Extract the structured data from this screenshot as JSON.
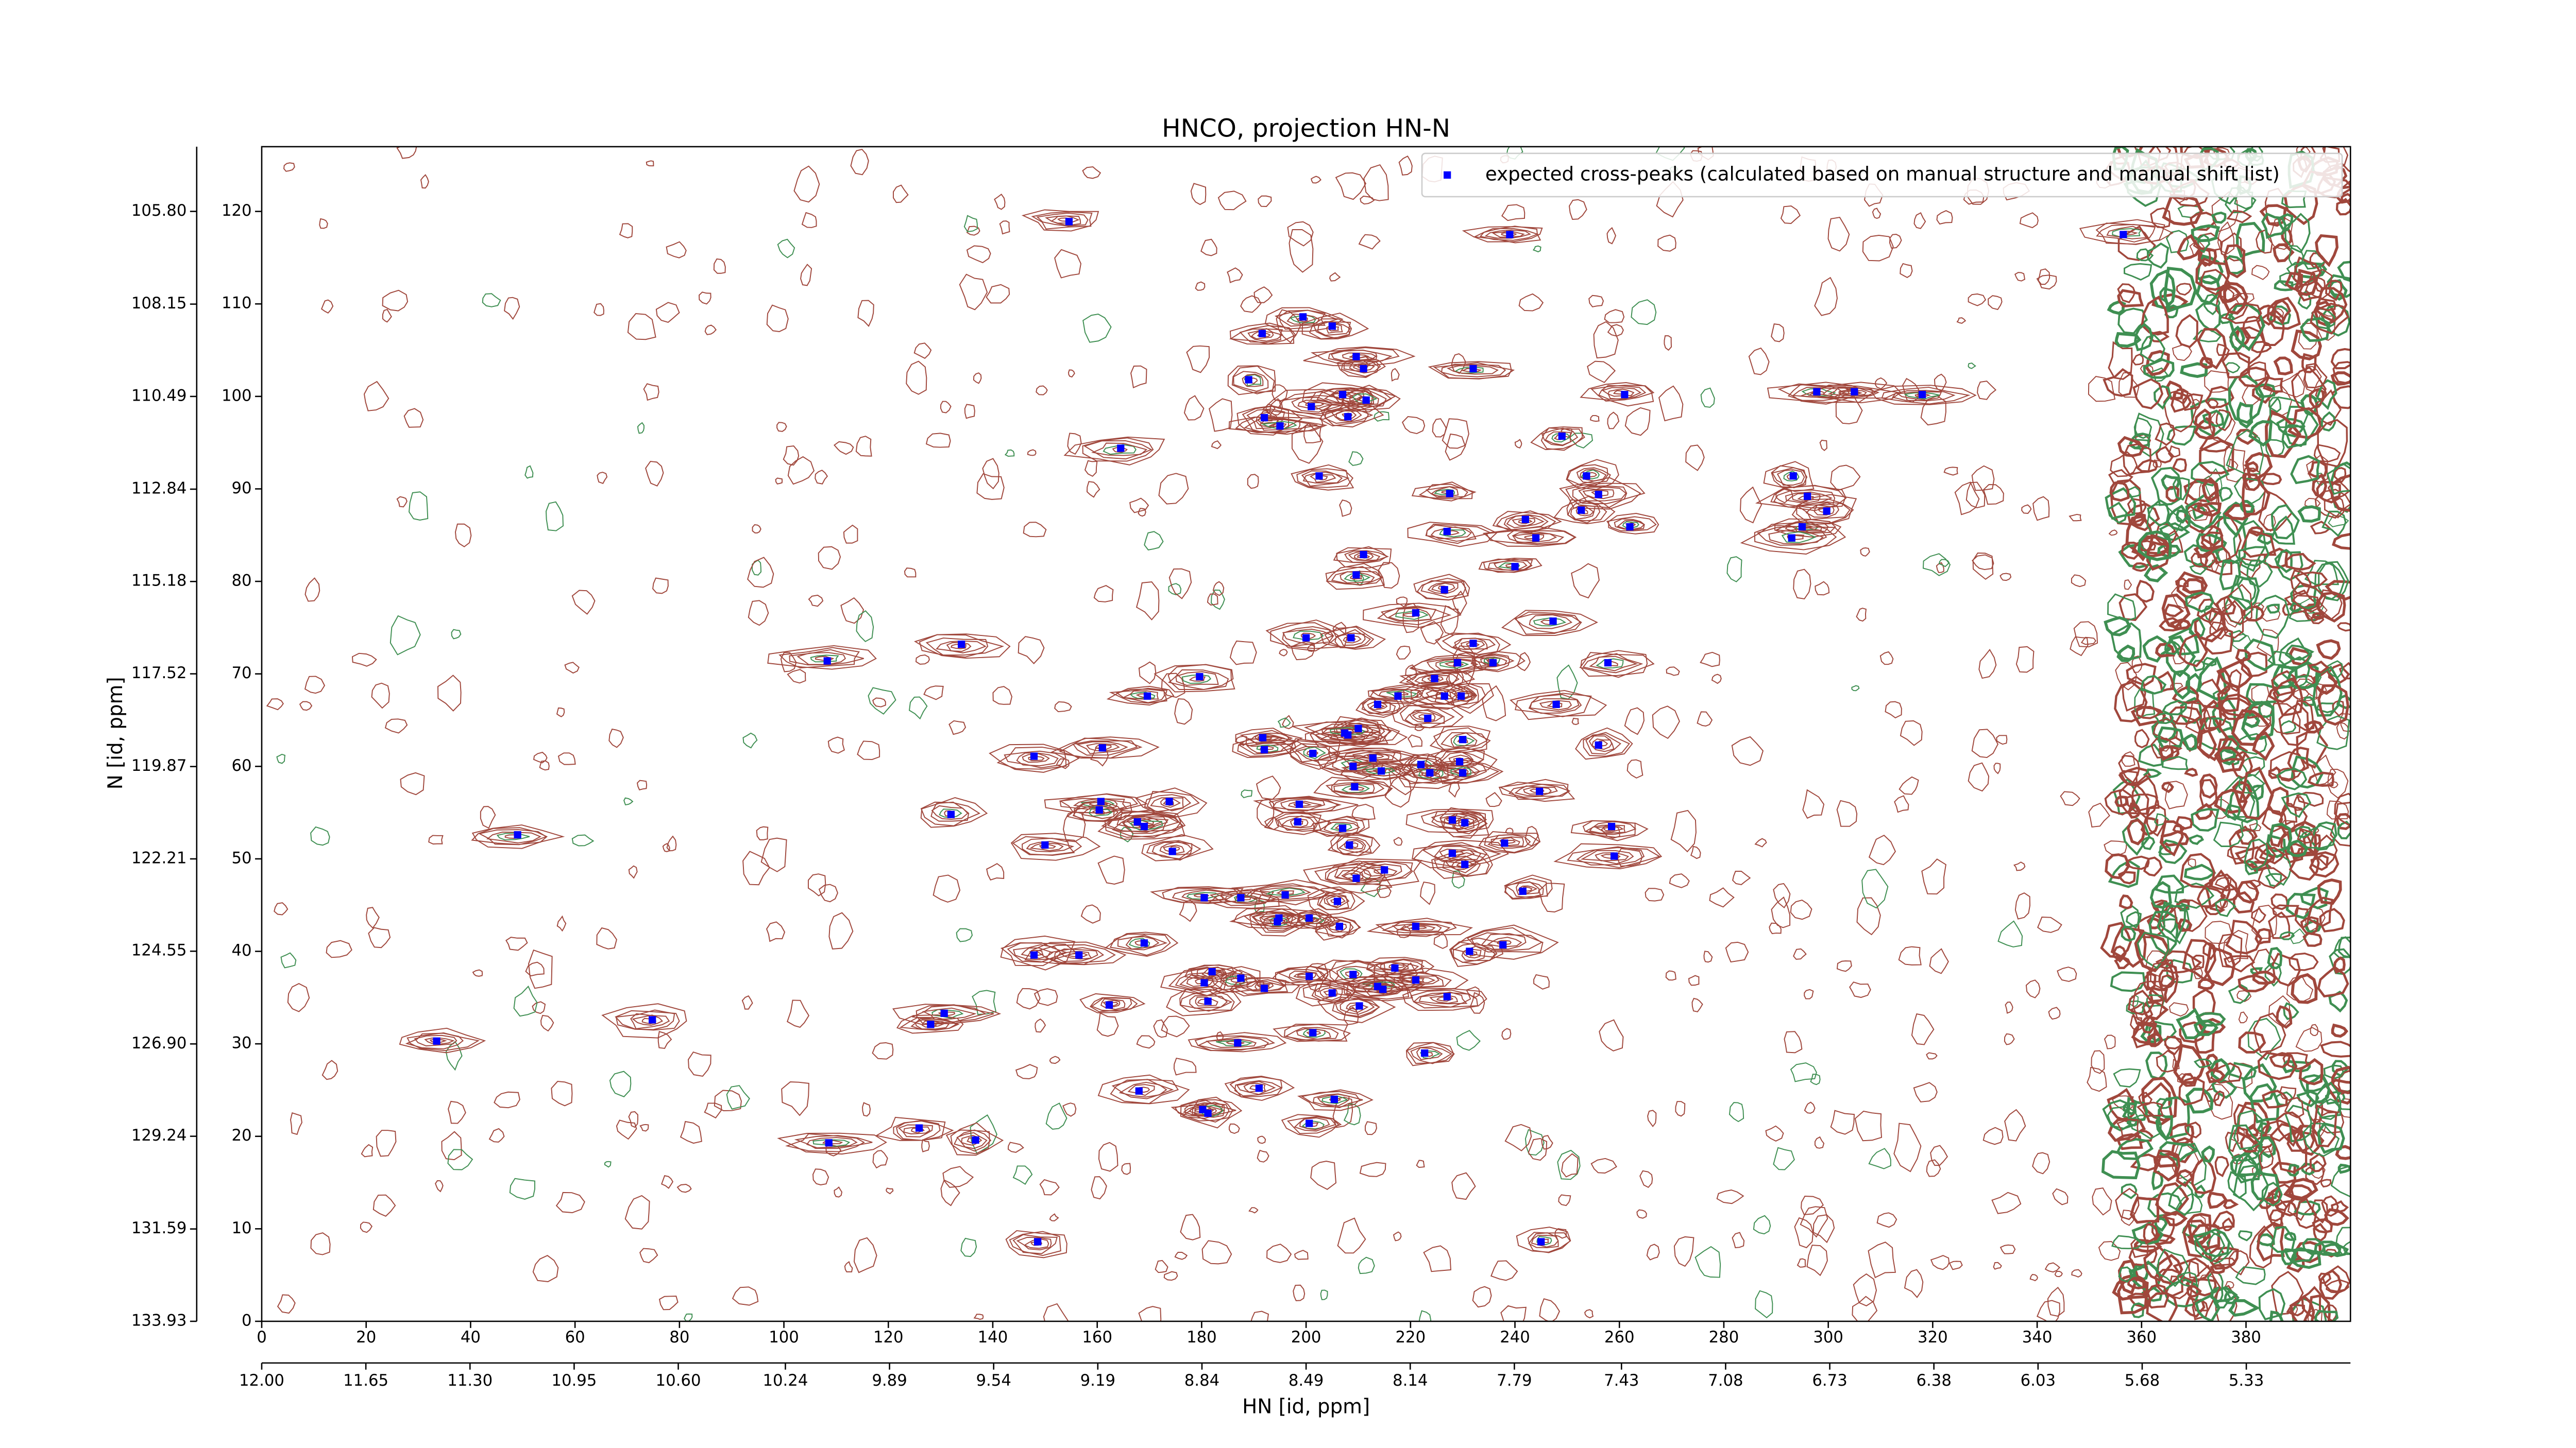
{
  "chart_data": {
    "type": "scatter",
    "title": "HNCO, projection HN-N",
    "xlabel": "HN [id, ppm]",
    "ylabel": "N [id, ppm]",
    "xlim": [
      0,
      400
    ],
    "ylim": [
      0,
      127
    ],
    "xticks": [
      0,
      20,
      40,
      60,
      80,
      100,
      120,
      140,
      160,
      180,
      200,
      220,
      240,
      260,
      280,
      300,
      320,
      340,
      360,
      380
    ],
    "yticks": [
      0,
      10,
      20,
      30,
      40,
      50,
      60,
      70,
      80,
      90,
      100,
      110,
      120
    ],
    "x2lim": [
      12.0,
      4.98
    ],
    "x2ticks": [
      {
        "value": 12.0,
        "label": "12.00"
      },
      {
        "value": 11.65,
        "label": "11.65"
      },
      {
        "value": 11.3,
        "label": "11.30"
      },
      {
        "value": 10.95,
        "label": "10.95"
      },
      {
        "value": 10.6,
        "label": "10.60"
      },
      {
        "value": 10.24,
        "label": "10.24"
      },
      {
        "value": 9.89,
        "label": "9.89"
      },
      {
        "value": 9.54,
        "label": "9.54"
      },
      {
        "value": 9.19,
        "label": "9.19"
      },
      {
        "value": 8.84,
        "label": "8.84"
      },
      {
        "value": 8.49,
        "label": "8.49"
      },
      {
        "value": 8.14,
        "label": "8.14"
      },
      {
        "value": 7.79,
        "label": "7.79"
      },
      {
        "value": 7.43,
        "label": "7.43"
      },
      {
        "value": 7.08,
        "label": "7.08"
      },
      {
        "value": 6.73,
        "label": "6.73"
      },
      {
        "value": 6.38,
        "label": "6.38"
      },
      {
        "value": 6.03,
        "label": "6.03"
      },
      {
        "value": 5.68,
        "label": "5.68"
      },
      {
        "value": 5.33,
        "label": "5.33"
      }
    ],
    "y2lim": [
      133.93,
      104.16
    ],
    "y2ticks": [
      {
        "value": 105.8,
        "label": "105.80"
      },
      {
        "value": 108.15,
        "label": "108.15"
      },
      {
        "value": 110.49,
        "label": "110.49"
      },
      {
        "value": 112.84,
        "label": "112.84"
      },
      {
        "value": 115.18,
        "label": "115.18"
      },
      {
        "value": 117.52,
        "label": "117.52"
      },
      {
        "value": 119.87,
        "label": "119.87"
      },
      {
        "value": 122.21,
        "label": "122.21"
      },
      {
        "value": 124.55,
        "label": "124.55"
      },
      {
        "value": 126.9,
        "label": "126.90"
      },
      {
        "value": 129.24,
        "label": "129.24"
      },
      {
        "value": 131.59,
        "label": "131.59"
      },
      {
        "value": 133.93,
        "label": "133.93"
      }
    ],
    "legend": "upper right",
    "series": [
      {
        "name": "expected cross-peaks (calculated based on manual structure and manual shift list)",
        "color": "#0000ff",
        "x": [
          154.6,
          239,
          356.5,
          199.4,
          205,
          191.6,
          209.6,
          211,
          232,
          189,
          207,
          201,
          211.5,
          261,
          297.8,
          305,
          318,
          208,
          192,
          195,
          164.5,
          249,
          202.5,
          253.7,
          293.3,
          227.5,
          256,
          296,
          252.7,
          299.7,
          242,
          262,
          295,
          227,
          244,
          293,
          211,
          240,
          209.6,
          226.5,
          221,
          247.3,
          200,
          208.6,
          134,
          232,
          108.3,
          229,
          235.8,
          257.8,
          179.6,
          224.6,
          169.6,
          217.6,
          226.5,
          229.7,
          213.7,
          247.9,
          223.3,
          210,
          208,
          191.7,
          207.4,
          230,
          256,
          161,
          192,
          201.3,
          147.9,
          212.8,
          222,
          229.4,
          209,
          223.7,
          230,
          214.4,
          209.3,
          244.7,
          160.7,
          173.8,
          198.7,
          160.4,
          167.7,
          132,
          198.4,
          228,
          230.4,
          258.5,
          49,
          169,
          207,
          150,
          174.4,
          238,
          208.3,
          228,
          259,
          230.4,
          215,
          209.6,
          241.5,
          180.5,
          187.5,
          196,
          206,
          200.6,
          194.5,
          194.8,
          206.4,
          221,
          237.7,
          147.9,
          156.5,
          169,
          231.3,
          182,
          217,
          180.5,
          187.5,
          192,
          200.6,
          209,
          221,
          213.7,
          205,
          181.2,
          214.7,
          227,
          210.2,
          162.3,
          130.7,
          128.1,
          74.8,
          33.5,
          201.3,
          186.9,
          222.7,
          191,
          168,
          205.4,
          180.2,
          181.2,
          200.6,
          125.9,
          136.7,
          108.6,
          148.6,
          245
        ],
        "values": [
          118.9,
          117.5,
          117.5,
          108.6,
          107.6,
          106.8,
          104.3,
          103,
          103,
          101.8,
          100.2,
          98.9,
          99.6,
          100.2,
          100.5,
          100.5,
          100.2,
          97.8,
          97.7,
          96.8,
          94.4,
          95.7,
          91.4,
          91.4,
          91.4,
          89.5,
          89.4,
          89.2,
          87.7,
          87.6,
          86.7,
          85.9,
          85.9,
          85.4,
          84.7,
          84.7,
          82.9,
          81.6,
          80.7,
          79.1,
          76.6,
          75.7,
          73.9,
          73.9,
          73.2,
          73.3,
          71.4,
          71.2,
          71.2,
          71.2,
          69.7,
          69.5,
          67.6,
          67.6,
          67.6,
          67.6,
          66.7,
          66.7,
          65.2,
          64.1,
          63.4,
          63.1,
          63.6,
          62.9,
          62.3,
          62,
          61.8,
          61.4,
          61.1,
          60.9,
          60.2,
          60.5,
          60,
          59.3,
          59.3,
          59.5,
          57.8,
          57.3,
          56.2,
          56.2,
          55.9,
          55.3,
          54,
          54.8,
          54,
          54.2,
          53.9,
          53.5,
          52.6,
          53.5,
          53.3,
          51.5,
          50.8,
          51.7,
          51.5,
          50.6,
          50.3,
          49.4,
          48.8,
          47.9,
          46.5,
          45.8,
          45.8,
          46.1,
          45.4,
          43.6,
          43.2,
          43.6,
          42.7,
          42.7,
          40.7,
          39.6,
          39.6,
          40.9,
          40,
          37.8,
          38.2,
          36.6,
          37.1,
          36,
          37.3,
          37.5,
          36.9,
          36.2,
          35.5,
          34.6,
          35.9,
          35.1,
          34.1,
          34.2,
          33.3,
          32.1,
          32.6,
          30.3,
          31.2,
          30.1,
          29,
          25.2,
          24.9,
          24,
          22.9,
          22.5,
          21.4,
          20.9,
          19.6,
          19.3,
          8.6,
          8.6
        ]
      }
    ]
  }
}
